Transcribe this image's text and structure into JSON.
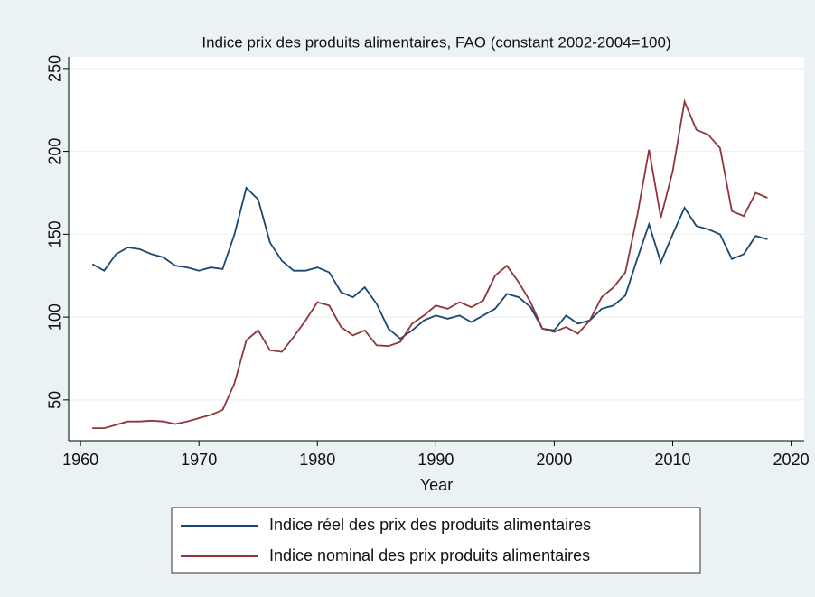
{
  "chart_data": {
    "type": "line",
    "title": "Indice prix des produits alimentaires, FAO  (constant 2002-2004=100)",
    "x_label": "Year",
    "x": [
      1961,
      1962,
      1963,
      1964,
      1965,
      1966,
      1967,
      1968,
      1969,
      1970,
      1971,
      1972,
      1973,
      1974,
      1975,
      1976,
      1977,
      1978,
      1979,
      1980,
      1981,
      1982,
      1983,
      1984,
      1985,
      1986,
      1987,
      1988,
      1989,
      1990,
      1991,
      1992,
      1993,
      1994,
      1995,
      1996,
      1997,
      1998,
      1999,
      2000,
      2001,
      2002,
      2003,
      2004,
      2005,
      2006,
      2007,
      2008,
      2009,
      2010,
      2011,
      2012,
      2013,
      2014,
      2015,
      2016,
      2017,
      2018
    ],
    "series": [
      {
        "name": "Indice réel des prix des produits alimentaires",
        "color": "#1a476f",
        "values": [
          132,
          128,
          138,
          142,
          141,
          138,
          136,
          131,
          130,
          128,
          130,
          129,
          150,
          178,
          171,
          145,
          134,
          128,
          128,
          130,
          127,
          115,
          112,
          118,
          108,
          93,
          87,
          92,
          98,
          101,
          99,
          101,
          97,
          101,
          105,
          114,
          112,
          106,
          93,
          92,
          101,
          96,
          98,
          105,
          107,
          113,
          135,
          156,
          133,
          150,
          166,
          155,
          153,
          150,
          135,
          138,
          149,
          147
        ]
      },
      {
        "name": "Indice nominal des prix produits alimentaires",
        "color": "#90353b",
        "values": [
          33,
          33,
          35,
          37,
          37,
          37.5,
          37,
          35.5,
          37,
          39,
          41,
          44,
          60,
          86,
          92,
          80,
          79,
          88,
          98,
          109,
          107,
          94,
          89,
          92,
          83,
          82.5,
          85,
          96,
          101,
          107,
          105,
          109,
          106,
          110,
          125,
          131,
          121,
          109,
          93,
          91,
          94,
          90,
          98,
          112,
          118,
          127,
          161,
          201,
          160,
          188,
          230,
          213,
          210,
          202,
          164,
          161,
          175,
          172
        ]
      }
    ],
    "xlim": [
      1959,
      2021.1
    ],
    "xticks": [
      1960,
      1970,
      1980,
      1990,
      2000,
      2010,
      2020
    ],
    "ylim": [
      25.4,
      257
    ],
    "yticks": [
      50,
      100,
      150,
      200,
      250
    ],
    "grid": true,
    "legend": "bottom"
  }
}
